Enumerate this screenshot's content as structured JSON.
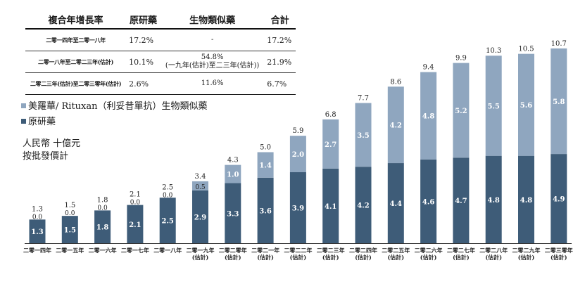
{
  "table": {
    "headers": [
      "複合年增長率",
      "原研藥",
      "生物類似藥",
      "合計"
    ],
    "rows": [
      [
        "二零一四年至二零一八年",
        "17.2%",
        "-",
        "17.2%"
      ],
      [
        "二零一八年至二零二三年(估計)",
        "10.1%",
        "54.8%\n(一九年(估計)至二三年(估計))",
        "21.9%"
      ],
      [
        "二零二三年(估計)至二零三零年(估計)",
        "2.6%",
        "11.6%",
        "6.7%"
      ]
    ]
  },
  "legend": {
    "biosimilar": "美羅華/ Rituxan（利妥昔單抗）生物類似藥",
    "originator": "原研藥"
  },
  "unit": {
    "line1": "人民幣 十億元",
    "line2": "按批發價計"
  },
  "colors": {
    "originator": "#3e5c78",
    "biosimilar": "#8fa6bf"
  },
  "chart_data": {
    "type": "bar",
    "stacked": true,
    "categories": [
      [
        "二零一四年"
      ],
      [
        "二零一五年"
      ],
      [
        "二零一六年"
      ],
      [
        "二零一七年"
      ],
      [
        "二零一八年"
      ],
      [
        "二零一九年",
        "(估計)"
      ],
      [
        "二零二零年",
        "(估計)"
      ],
      [
        "二零二一年",
        "(估計)"
      ],
      [
        "二零二二年",
        "(估計)"
      ],
      [
        "二零二三年",
        "(估計)"
      ],
      [
        "二零二四年",
        "(估計)"
      ],
      [
        "二零二五年",
        "(估計)"
      ],
      [
        "二零二六年",
        "(估計)"
      ],
      [
        "二零二七年",
        "(估計)"
      ],
      [
        "二零二八年",
        "(估計)"
      ],
      [
        "二零二九年",
        "(估計)"
      ],
      [
        "二零三零年",
        "(估計)"
      ]
    ],
    "series": [
      {
        "name": "原研藥",
        "values": [
          1.3,
          1.5,
          1.8,
          2.1,
          2.5,
          2.9,
          3.3,
          3.6,
          3.9,
          4.1,
          4.2,
          4.4,
          4.6,
          4.7,
          4.8,
          4.8,
          4.9
        ]
      },
      {
        "name": "美羅華/ Rituxan（利妥昔單抗）生物類似藥",
        "values": [
          0.0,
          0.0,
          0.0,
          0.0,
          0.0,
          0.5,
          1.0,
          1.4,
          2.0,
          2.7,
          3.5,
          4.2,
          4.8,
          5.2,
          5.5,
          5.6,
          5.8
        ]
      }
    ],
    "totals": [
      1.3,
      1.5,
      1.8,
      2.1,
      2.5,
      3.4,
      4.3,
      5.0,
      5.9,
      6.8,
      7.7,
      8.6,
      9.4,
      9.9,
      10.3,
      10.5,
      10.7
    ],
    "ylim": [
      0,
      10.7
    ]
  }
}
